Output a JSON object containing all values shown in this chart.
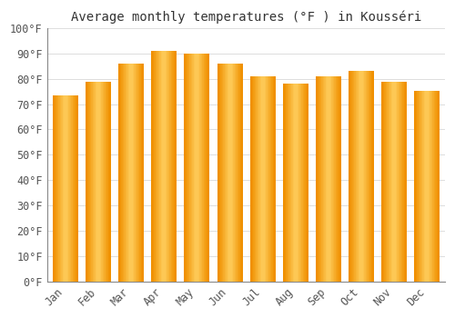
{
  "title": "Average monthly temperatures (°F ) in Kousséri",
  "months": [
    "Jan",
    "Feb",
    "Mar",
    "Apr",
    "May",
    "Jun",
    "Jul",
    "Aug",
    "Sep",
    "Oct",
    "Nov",
    "Dec"
  ],
  "values": [
    73.4,
    78.8,
    86.0,
    91.0,
    90.0,
    86.0,
    81.0,
    78.0,
    81.0,
    83.0,
    78.8,
    75.0
  ],
  "bar_color_center": "#FFD060",
  "bar_color_edge": "#F09000",
  "background_color": "#FFFFFF",
  "grid_color": "#DDDDDD",
  "ytick_labels": [
    "0°F",
    "10°F",
    "20°F",
    "30°F",
    "40°F",
    "50°F",
    "60°F",
    "70°F",
    "80°F",
    "90°F",
    "100°F"
  ],
  "ytick_values": [
    0,
    10,
    20,
    30,
    40,
    50,
    60,
    70,
    80,
    90,
    100
  ],
  "ylim": [
    0,
    100
  ],
  "title_fontsize": 10,
  "tick_fontsize": 8.5,
  "bar_width": 0.75
}
